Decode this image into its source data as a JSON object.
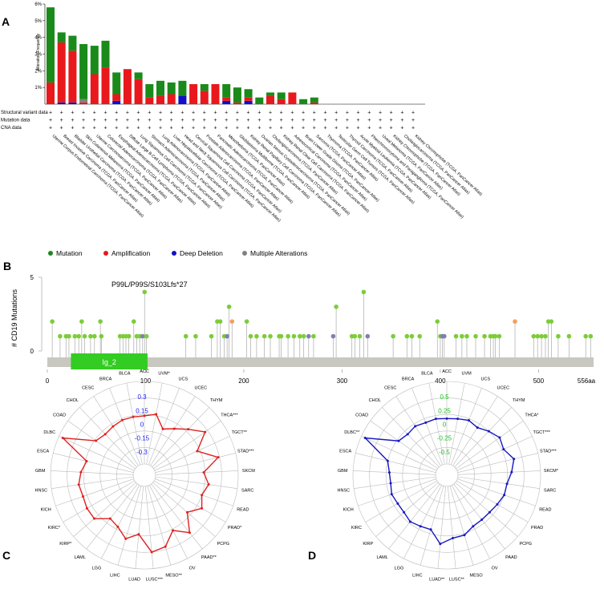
{
  "panels": {
    "a": "A",
    "b": "B",
    "c": "C",
    "d": "D"
  },
  "colors": {
    "mutation": "#1a8a1a",
    "amplification": "#e8181c",
    "deep_deletion": "#1010c8",
    "multiple": "#808080",
    "lollipop_green": "#7ccd38",
    "lollipop_orange": "#f0a060",
    "lollipop_purple": "#8080b0",
    "domain_green": "#33cc22",
    "track_gray": "#c8c8c0",
    "radar_red": "#e02020",
    "radar_blue": "#1818c0",
    "radar_tick_red": "#2020ff",
    "radar_tick_blue": "#20c020"
  },
  "chart_data": [
    {
      "type": "bar",
      "ylabel": "Alteration Frequency",
      "ylim": [
        0,
        6
      ],
      "y_ticks": [
        "1%",
        "2%",
        "3%",
        "4%",
        "5%",
        "6%"
      ],
      "row_labels": [
        "Structural variant data",
        "Mutation data",
        "CNA data"
      ],
      "row_marker": "+",
      "legend": [
        {
          "key": "mutation",
          "label": "Mutation"
        },
        {
          "key": "amplification",
          "label": "Amplification"
        },
        {
          "key": "deep_deletion",
          "label": "Deep Deletion"
        },
        {
          "key": "multiple",
          "label": "Multiple Alterations"
        }
      ],
      "categories": [
        "Uterine Corpus Endometrial Carcinoma (TCGA, PanCancer Atlas)",
        "Breast Invasive Carcinoma (TCGA, PanCancer Atlas)",
        "Bladder Urothelial Carcinoma (TCGA, PanCancer Atlas)",
        "Skin Cutaneous Melanoma (TCGA, PanCancer Atlas)",
        "Uterine Carcinosarcoma (TCGA, PanCancer Atlas)",
        "Colorectal Adenocarcinoma (TCGA, PanCancer Atlas)",
        "Esophageal Adenocarcinoma (TCGA, PanCancer Atlas)",
        "Diffuse Large B-Cell Lymphoma (TCGA, PanCancer Atlas)",
        "Lung Squamous Cell Carcinoma (TCGA, PanCancer Atlas)",
        "Stomach Adenocarcinoma (TCGA, PanCancer Atlas)",
        "Lung Adenocarcinoma (TCGA, PanCancer Atlas)",
        "Liver Hepatocellular Carcinoma (TCGA, PanCancer Atlas)",
        "Head and Neck Squamous Cell Carcinoma (TCGA, PanCancer Atlas)",
        "Cervical Squamous Cell Carcinoma (TCGA, PanCancer Atlas)",
        "Prostate Adenocarcinoma (TCGA, PanCancer Atlas)",
        "Pancreatic Adenocarcinoma (TCGA, PanCancer Atlas)",
        "Mesothelioma (TCGA, PanCancer Atlas)",
        "Glioblastoma Multiforme (TCGA, PanCancer Atlas)",
        "Kidney Renal Papillary Cell Carcinoma (TCGA, PanCancer Atlas)",
        "Ovarian Serous Cystadenocarcinoma (TCGA, PanCancer Atlas)",
        "Cholangiocarcinoma (TCGA, PanCancer Atlas)",
        "Kidney Renal Clear Cell Carcinoma (TCGA, PanCancer Atlas)",
        "Adrenocortical Carcinoma (TCGA, PanCancer Atlas)",
        "Brain Lower Grade Glioma (TCGA, PanCancer Atlas)",
        "Sarcoma (TCGA, PanCancer Atlas)",
        "Thymoma (TCGA, PanCancer Atlas)",
        "Testicular Germ Cell Tumors (TCGA, PanCancer Atlas)",
        "Thyroid Carcinoma (TCGA, PanCancer Atlas)",
        "Acute Myeloid Leukemia (TCGA, PanCancer Atlas)",
        "Pheochromocytoma and Paraganglioma (TCGA, PanCancer Atlas)",
        "Uveal Melanoma (TCGA, PanCancer Atlas)",
        "Kidney Chromophobe (TCGA, PanCancer Atlas)",
        "Cholangiocarcinoma (TCGA, PanCancer Atlas)",
        "Kidney Chromophobe (TCGA, PanCancer Atlas)"
      ],
      "series": [
        {
          "name": "Mutation",
          "values": [
            4.5,
            0.6,
            0.9,
            3.3,
            1.7,
            1.6,
            1.3,
            0,
            0.4,
            0.8,
            0.9,
            0.7,
            0.9,
            0,
            0.4,
            0,
            0.8,
            0.9,
            0.5,
            0.4,
            0.2,
            0.4,
            0,
            0.3,
            0.3,
            0,
            0,
            0,
            0,
            0,
            0,
            0,
            0,
            0
          ]
        },
        {
          "name": "Amplification",
          "values": [
            1.3,
            3.6,
            3.1,
            0.1,
            1.8,
            2.2,
            0.4,
            2.1,
            1.5,
            0.4,
            0.5,
            0.6,
            0,
            1.2,
            0.8,
            1.2,
            0.2,
            0.1,
            0.2,
            0,
            0.5,
            0.3,
            0.7,
            0,
            0.1,
            0,
            0,
            0,
            0,
            0,
            0,
            0,
            0,
            0
          ]
        },
        {
          "name": "Deep Deletion",
          "values": [
            0,
            0.1,
            0.1,
            0,
            0,
            0,
            0.2,
            0,
            0,
            0,
            0,
            0,
            0.5,
            0,
            0,
            0,
            0.2,
            0,
            0.2,
            0,
            0,
            0,
            0,
            0,
            0,
            0,
            0,
            0,
            0,
            0,
            0,
            0,
            0,
            0
          ]
        },
        {
          "name": "Multiple Alterations",
          "values": [
            0,
            0,
            0,
            0.2,
            0,
            0,
            0,
            0,
            0,
            0,
            0,
            0,
            0,
            0,
            0,
            0,
            0,
            0,
            0,
            0,
            0,
            0,
            0,
            0,
            0,
            0,
            0,
            0,
            0,
            0,
            0,
            0,
            0,
            0
          ]
        }
      ]
    },
    {
      "type": "scatter",
      "ylabel": "# CD19 Mutations",
      "ylim": [
        0,
        5
      ],
      "xlim": [
        0,
        556
      ],
      "x_ticks": [
        0,
        100,
        200,
        300,
        400,
        500
      ],
      "y_ticks": [
        0,
        5
      ],
      "x_end_label": "556aa",
      "annotation": "P99L/P99S/S103Lfs*27",
      "domain": {
        "label": "Ig_2",
        "start": 24,
        "end": 102
      },
      "points": [
        {
          "x": 5,
          "y": 2,
          "c": "g"
        },
        {
          "x": 13,
          "y": 1,
          "c": "g"
        },
        {
          "x": 19,
          "y": 1,
          "c": "g"
        },
        {
          "x": 22,
          "y": 1,
          "c": "g"
        },
        {
          "x": 28,
          "y": 1,
          "c": "g"
        },
        {
          "x": 32,
          "y": 1,
          "c": "g"
        },
        {
          "x": 35,
          "y": 2,
          "c": "g"
        },
        {
          "x": 38,
          "y": 1,
          "c": "g"
        },
        {
          "x": 44,
          "y": 1,
          "c": "g"
        },
        {
          "x": 48,
          "y": 1,
          "c": "g"
        },
        {
          "x": 54,
          "y": 2,
          "c": "g"
        },
        {
          "x": 55,
          "y": 1,
          "c": "g"
        },
        {
          "x": 74,
          "y": 1,
          "c": "g"
        },
        {
          "x": 77,
          "y": 1,
          "c": "g"
        },
        {
          "x": 80,
          "y": 1,
          "c": "g"
        },
        {
          "x": 83,
          "y": 1,
          "c": "g"
        },
        {
          "x": 88,
          "y": 2,
          "c": "g"
        },
        {
          "x": 91,
          "y": 1,
          "c": "g"
        },
        {
          "x": 94,
          "y": 1,
          "c": "g"
        },
        {
          "x": 97,
          "y": 1,
          "c": "p"
        },
        {
          "x": 99,
          "y": 4,
          "c": "g"
        },
        {
          "x": 101,
          "y": 1,
          "c": "g"
        },
        {
          "x": 141,
          "y": 1,
          "c": "g"
        },
        {
          "x": 151,
          "y": 1,
          "c": "g"
        },
        {
          "x": 167,
          "y": 1,
          "c": "g"
        },
        {
          "x": 173,
          "y": 2,
          "c": "g"
        },
        {
          "x": 176,
          "y": 2,
          "c": "g"
        },
        {
          "x": 180,
          "y": 1,
          "c": "g"
        },
        {
          "x": 183,
          "y": 1,
          "c": "p"
        },
        {
          "x": 185,
          "y": 3,
          "c": "g"
        },
        {
          "x": 188,
          "y": 2,
          "c": "o"
        },
        {
          "x": 203,
          "y": 2,
          "c": "g"
        },
        {
          "x": 207,
          "y": 1,
          "c": "g"
        },
        {
          "x": 213,
          "y": 1,
          "c": "g"
        },
        {
          "x": 221,
          "y": 1,
          "c": "g"
        },
        {
          "x": 227,
          "y": 1,
          "c": "g"
        },
        {
          "x": 236,
          "y": 1,
          "c": "g"
        },
        {
          "x": 238,
          "y": 1,
          "c": "g"
        },
        {
          "x": 245,
          "y": 1,
          "c": "g"
        },
        {
          "x": 251,
          "y": 1,
          "c": "g"
        },
        {
          "x": 257,
          "y": 1,
          "c": "g"
        },
        {
          "x": 261,
          "y": 1,
          "c": "g"
        },
        {
          "x": 266,
          "y": 1,
          "c": "p"
        },
        {
          "x": 271,
          "y": 1,
          "c": "g"
        },
        {
          "x": 291,
          "y": 1,
          "c": "p"
        },
        {
          "x": 294,
          "y": 3,
          "c": "g"
        },
        {
          "x": 310,
          "y": 1,
          "c": "g"
        },
        {
          "x": 313,
          "y": 1,
          "c": "g"
        },
        {
          "x": 318,
          "y": 1,
          "c": "g"
        },
        {
          "x": 322,
          "y": 4,
          "c": "g"
        },
        {
          "x": 326,
          "y": 1,
          "c": "p"
        },
        {
          "x": 352,
          "y": 1,
          "c": "g"
        },
        {
          "x": 366,
          "y": 1,
          "c": "g"
        },
        {
          "x": 371,
          "y": 1,
          "c": "g"
        },
        {
          "x": 379,
          "y": 1,
          "c": "g"
        },
        {
          "x": 397,
          "y": 2,
          "c": "g"
        },
        {
          "x": 400,
          "y": 1,
          "c": "g"
        },
        {
          "x": 402,
          "y": 1,
          "c": "p"
        },
        {
          "x": 404,
          "y": 1,
          "c": "p"
        },
        {
          "x": 416,
          "y": 1,
          "c": "g"
        },
        {
          "x": 422,
          "y": 1,
          "c": "g"
        },
        {
          "x": 427,
          "y": 1,
          "c": "g"
        },
        {
          "x": 436,
          "y": 1,
          "c": "g"
        },
        {
          "x": 445,
          "y": 1,
          "c": "g"
        },
        {
          "x": 451,
          "y": 1,
          "c": "g"
        },
        {
          "x": 454,
          "y": 1,
          "c": "g"
        },
        {
          "x": 456,
          "y": 1,
          "c": "g"
        },
        {
          "x": 460,
          "y": 1,
          "c": "g"
        },
        {
          "x": 476,
          "y": 2,
          "c": "o"
        },
        {
          "x": 495,
          "y": 1,
          "c": "g"
        },
        {
          "x": 499,
          "y": 1,
          "c": "g"
        },
        {
          "x": 503,
          "y": 1,
          "c": "g"
        },
        {
          "x": 507,
          "y": 1,
          "c": "g"
        },
        {
          "x": 510,
          "y": 2,
          "c": "g"
        },
        {
          "x": 513,
          "y": 2,
          "c": "g"
        },
        {
          "x": 520,
          "y": 1,
          "c": "g"
        },
        {
          "x": 531,
          "y": 1,
          "c": "g"
        },
        {
          "x": 548,
          "y": 1,
          "c": "g"
        },
        {
          "x": 553,
          "y": 1,
          "c": "g"
        }
      ]
    },
    {
      "type": "radar",
      "axes": [
        "ACC",
        "UVM*",
        "UCS",
        "UCEC",
        "THYM",
        "THCA***",
        "TGCT**",
        "STAD***",
        "SKCM",
        "SARC",
        "READ",
        "PRAD*",
        "PCPG",
        "PAAD**",
        "OV",
        "MESO**",
        "LUSC***",
        "LUAD",
        "LIHC",
        "LGG",
        "LAML",
        "KIRP*",
        "KIRC*",
        "KICH",
        "HNSC",
        "GBM",
        "ESCA",
        "DLBC",
        "COAD",
        "CHOL",
        "CESC",
        "BRCA",
        "BLCA"
      ],
      "ring_labels": [
        "0.3",
        "0.15",
        "0",
        "-0.15",
        "-0.3"
      ],
      "rlim": [
        -0.3,
        0.3
      ],
      "values": [
        0.05,
        0.07,
        -0.02,
        0.02,
        0.08,
        0.16,
        0.04,
        0.17,
        0.05,
        0.09,
        0.06,
        0.1,
        0.03,
        0.15,
        0.07,
        0.16,
        0.18,
        0.05,
        0.1,
        0.04,
        0.02,
        0.1,
        0.1,
        0.09,
        0.1,
        0.08,
        0.05,
        0.27,
        0.05,
        0.03,
        0.04,
        0.05,
        0.05
      ]
    },
    {
      "type": "radar",
      "axes": [
        "ACC",
        "UVM",
        "UCS",
        "UCEC",
        "THYM",
        "THCA*",
        "TGCT***",
        "STAD***",
        "SKCM*",
        "SARC",
        "READ",
        "PRAD",
        "PCPG",
        "PAAD",
        "OV",
        "MESO",
        "LUSC**",
        "LUAD**",
        "LIHC",
        "LGG",
        "LAML",
        "KIRP",
        "KIRC",
        "KICH",
        "HNSC",
        "GBM",
        "ESCA",
        "DLBC**",
        "COAD",
        "CHOL",
        "CESC",
        "BRCA",
        "BLCA"
      ],
      "ring_labels": [
        "0.5",
        "0.25",
        "0",
        "-0.25",
        "-0.5"
      ],
      "rlim": [
        -0.5,
        0.5
      ],
      "values": [
        0.05,
        0.06,
        0.08,
        0.05,
        0.1,
        0.15,
        0.12,
        0.2,
        0.15,
        0.1,
        0.1,
        0.07,
        0.05,
        0.05,
        0.06,
        0.12,
        0.13,
        0.2,
        0.05,
        0.06,
        0.08,
        0.05,
        0.05,
        0.07,
        0.05,
        0.06,
        0.1,
        0.45,
        0.08,
        0.05,
        0.07,
        0.05,
        0.06
      ]
    }
  ]
}
